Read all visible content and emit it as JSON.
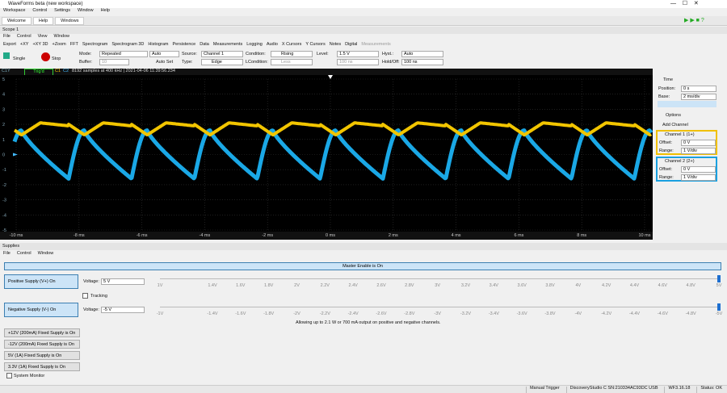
{
  "title_bar": {
    "title": "WaveForms beta (new workspace)"
  },
  "main_menu": [
    "Workspace",
    "Control",
    "Settings",
    "Window",
    "Help"
  ],
  "tabs": [
    "Welcome",
    "Help",
    "Windows"
  ],
  "scope": {
    "title": "Scope 1",
    "menu": [
      "File",
      "Control",
      "View",
      "Window"
    ],
    "toolbar": [
      "Export",
      "+XY",
      "+XY 3D",
      "+Zoom",
      "FFT",
      "Spectrogram",
      "Spectrogram 3D",
      "Histogram",
      "Persistence",
      "Data",
      "Measurements",
      "Logging",
      "Audio",
      "X Cursors",
      "Y Cursors",
      "Notes",
      "Digital"
    ],
    "toolbar_disabled": "Measurements",
    "controls": {
      "single": "Single",
      "stop": "Stop",
      "mode_label": "Mode:",
      "mode": "Repeated",
      "auto": "Auto",
      "buffer_label": "Buffer:",
      "buffer": "10",
      "auto_set": "Auto Set",
      "source_label": "Source:",
      "source": "Channel 1",
      "type_label": "Type:",
      "type": "Edge",
      "condition_label": "Condition:",
      "condition": "Rising",
      "lcondition_label": "LCondition:",
      "lcondition": "Less",
      "level_label": "Level:",
      "level": "1.5 V",
      "level_time": "100 ns",
      "hyst_label": "Hyst.:",
      "hyst": "Auto",
      "holdoff_label": "Hold/Off:",
      "holdoff": "100 ns"
    },
    "status": {
      "axis": "C1Y",
      "trig": "Trig'd",
      "c1": "C1",
      "c2": "C2",
      "info": "8192 samples at 400 kHz | 2021-04-06 11:39:56.234"
    },
    "y_labels": [
      "5",
      "4",
      "3",
      "2",
      "1",
      "0",
      "-1",
      "-2",
      "-3",
      "-4",
      "-5"
    ],
    "x_labels": [
      "-10 ms",
      "-8 ms",
      "-6 ms",
      "-4 ms",
      "-2 ms",
      "0 ms",
      "2 ms",
      "4 ms",
      "6 ms",
      "8 ms",
      "10 ms"
    ],
    "panel": {
      "time": "Time",
      "position_label": "Position:",
      "position": "0 s",
      "base_label": "Base:",
      "base": "2 ms/div",
      "options": "Options",
      "add_channel": "Add Channel",
      "channels": [
        {
          "name": "Channel 1 (1+)",
          "offset_label": "Offset:",
          "offset": "0 V",
          "range_label": "Range:",
          "range": "1 V/div"
        },
        {
          "name": "Channel 2 (2+)",
          "offset_label": "Offset:",
          "offset": "0 V",
          "range_label": "Range:",
          "range": "1 V/div"
        }
      ]
    }
  },
  "supplies": {
    "title": "Supplies",
    "menu": [
      "File",
      "Control",
      "Window"
    ],
    "master": "Master Enable is On",
    "positive": {
      "button": "Positive Supply (V+) On",
      "voltage_label": "Voltage:",
      "voltage": "5 V",
      "scale": [
        "1V",
        "1.4V",
        "1.6V",
        "1.8V",
        "2V",
        "2.2V",
        "2.4V",
        "2.6V",
        "2.8V",
        "3V",
        "3.2V",
        "3.4V",
        "3.6V",
        "3.8V",
        "4V",
        "4.2V",
        "4.4V",
        "4.6V",
        "4.8V",
        "5V"
      ]
    },
    "tracking": "Tracking",
    "negative": {
      "button": "Negative Supply (V-) On",
      "voltage_label": "Voltage:",
      "voltage": "-5 V",
      "scale": [
        "-1V",
        "-1.4V",
        "-1.6V",
        "-1.8V",
        "-2V",
        "-2.2V",
        "-2.4V",
        "-2.6V",
        "-2.8V",
        "-3V",
        "-3.2V",
        "-3.4V",
        "-3.6V",
        "-3.8V",
        "-4V",
        "-4.2V",
        "-4.4V",
        "-4.6V",
        "-4.8V",
        "-5V"
      ]
    },
    "note": "Allowing up to 2.1 W or 700 mA output on positive and negative channels.",
    "fixed": [
      "+12V (200mA) Fixed Supply is On",
      "-12V (200mA) Fixed Supply is On",
      "5V (1A) Fixed Supply is On",
      "3.3V (1A) Fixed Supply is On"
    ],
    "system_monitor": "System Monitor"
  },
  "status_bar": [
    "Manual Trigger",
    "DiscoveryStudio C SN:210334AC93DC USB",
    "WF3.16.18",
    "Status: OK"
  ]
}
